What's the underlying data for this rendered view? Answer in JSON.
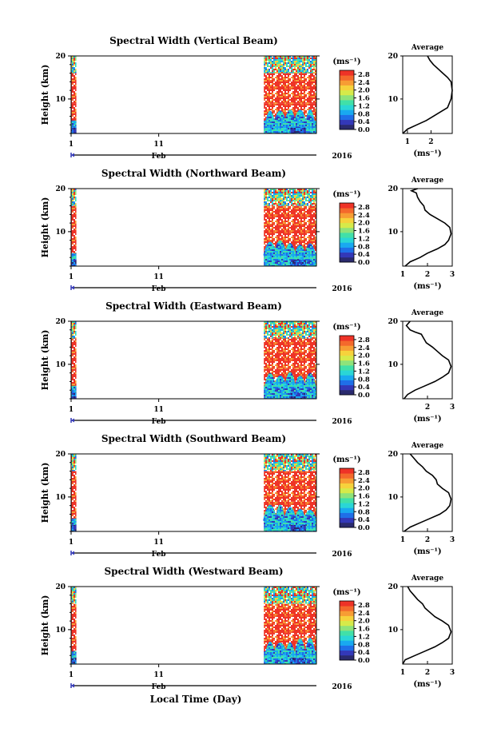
{
  "colors": {
    "scale": [
      "#2a2a6e",
      "#3338b8",
      "#1f6fe8",
      "#19a9f0",
      "#2ad6d6",
      "#41e0a8",
      "#8ee37a",
      "#d6ea4a",
      "#f6d23c",
      "#f79d34",
      "#f4692c",
      "#ee3327"
    ]
  },
  "x_axis": {
    "ticks": [
      "1",
      "11"
    ],
    "month": "Feb",
    "year": "2016",
    "label": "Local Time (Day)"
  },
  "chart_data": [
    {
      "type": "heatmap",
      "title": "Spectral Width (Vertical Beam)",
      "ylabel": "Height (km)",
      "ylim": [
        2,
        20
      ],
      "yticks": [
        "10",
        "20"
      ],
      "xlim": [
        1,
        29
      ],
      "data_spans": [
        [
          1,
          1.6
        ],
        [
          23,
          29
        ]
      ],
      "colorbar": {
        "unit": "(ms⁻¹)",
        "ticks": [
          "0.0",
          "0.4",
          "0.8",
          "1.2",
          "1.6",
          "2.0",
          "2.4",
          "2.8"
        ],
        "range": [
          0,
          3.0
        ]
      },
      "average": {
        "title": "Average",
        "unit": "(ms⁻¹)",
        "xticks": [
          "1",
          "2"
        ],
        "xlim": [
          0.8,
          2.9
        ],
        "profile": [
          [
            0.8,
            2
          ],
          [
            1.0,
            3
          ],
          [
            1.4,
            4
          ],
          [
            1.8,
            5
          ],
          [
            2.1,
            6
          ],
          [
            2.4,
            7
          ],
          [
            2.7,
            8
          ],
          [
            2.85,
            10
          ],
          [
            2.9,
            12
          ],
          [
            2.85,
            14
          ],
          [
            2.7,
            15
          ],
          [
            2.5,
            16
          ],
          [
            2.3,
            17
          ],
          [
            2.1,
            18
          ],
          [
            1.95,
            19
          ],
          [
            1.85,
            20
          ]
        ]
      }
    },
    {
      "type": "heatmap",
      "title": "Spectral Width (Northward Beam)",
      "ylabel": "Height (km)",
      "ylim": [
        2,
        20
      ],
      "yticks": [
        "10",
        "20"
      ],
      "xlim": [
        1,
        29
      ],
      "data_spans": [
        [
          1,
          1.6
        ],
        [
          23,
          29
        ]
      ],
      "colorbar": {
        "unit": "(ms⁻¹)",
        "ticks": [
          "0.0",
          "0.4",
          "0.8",
          "1.2",
          "1.6",
          "2.0",
          "2.4",
          "2.8"
        ],
        "range": [
          0,
          3.0
        ]
      },
      "average": {
        "title": "Average",
        "unit": "(ms⁻¹)",
        "xticks": [
          "1",
          "2",
          "3"
        ],
        "xlim": [
          1,
          3
        ],
        "profile": [
          [
            1.1,
            2
          ],
          [
            1.3,
            3
          ],
          [
            1.7,
            4
          ],
          [
            2.0,
            5
          ],
          [
            2.4,
            6
          ],
          [
            2.7,
            7
          ],
          [
            2.85,
            8
          ],
          [
            2.95,
            9.5
          ],
          [
            2.9,
            11
          ],
          [
            2.7,
            12
          ],
          [
            2.4,
            13
          ],
          [
            2.1,
            14
          ],
          [
            1.9,
            15
          ],
          [
            1.85,
            16
          ],
          [
            1.7,
            17
          ],
          [
            1.6,
            18
          ],
          [
            1.55,
            19
          ],
          [
            1.35,
            19.5
          ],
          [
            1.6,
            20
          ]
        ]
      }
    },
    {
      "type": "heatmap",
      "title": "Spectral Width (Eastward Beam)",
      "ylabel": "Height (km)",
      "ylim": [
        2,
        20
      ],
      "yticks": [
        "10",
        "20"
      ],
      "xlim": [
        1,
        29
      ],
      "data_spans": [
        [
          1,
          1.6
        ],
        [
          23,
          29
        ]
      ],
      "colorbar": {
        "unit": "(ms⁻¹)",
        "ticks": [
          "0.0",
          "0.4",
          "0.8",
          "1.2",
          "1.6",
          "2.0",
          "2.4",
          "2.8"
        ],
        "range": [
          0,
          3.0
        ]
      },
      "average": {
        "title": "Average",
        "unit": "(ms⁻¹)",
        "xticks": [
          "2",
          "3"
        ],
        "xlim": [
          1,
          3
        ],
        "profile": [
          [
            1.05,
            2
          ],
          [
            1.2,
            3
          ],
          [
            1.5,
            4
          ],
          [
            1.9,
            5
          ],
          [
            2.3,
            6
          ],
          [
            2.6,
            7
          ],
          [
            2.85,
            8
          ],
          [
            2.95,
            9.5
          ],
          [
            2.85,
            11
          ],
          [
            2.6,
            12
          ],
          [
            2.4,
            13
          ],
          [
            2.2,
            14
          ],
          [
            1.95,
            15
          ],
          [
            1.85,
            16
          ],
          [
            1.75,
            17
          ],
          [
            1.5,
            17.5
          ],
          [
            1.3,
            18
          ],
          [
            1.15,
            19
          ],
          [
            1.3,
            20
          ]
        ]
      }
    },
    {
      "type": "heatmap",
      "title": "Spectral Width (Southward Beam)",
      "ylabel": "Height (km)",
      "ylim": [
        2,
        20
      ],
      "yticks": [
        "10",
        "20"
      ],
      "xlim": [
        1,
        29
      ],
      "data_spans": [
        [
          1,
          1.6
        ],
        [
          23,
          29
        ]
      ],
      "colorbar": {
        "unit": "(ms⁻¹)",
        "ticks": [
          "0.0",
          "0.4",
          "0.8",
          "1.2",
          "1.6",
          "2.0",
          "2.4",
          "2.8"
        ],
        "range": [
          0,
          3.0
        ]
      },
      "average": {
        "title": "Average",
        "unit": "(ms⁻¹)",
        "xticks": [
          "1",
          "2",
          "3"
        ],
        "xlim": [
          1,
          3
        ],
        "profile": [
          [
            1.05,
            2
          ],
          [
            1.3,
            3
          ],
          [
            1.7,
            4
          ],
          [
            2.1,
            5
          ],
          [
            2.5,
            6
          ],
          [
            2.75,
            7
          ],
          [
            2.9,
            8
          ],
          [
            2.95,
            9.5
          ],
          [
            2.85,
            11
          ],
          [
            2.6,
            12
          ],
          [
            2.4,
            13
          ],
          [
            2.35,
            14
          ],
          [
            2.2,
            15
          ],
          [
            1.95,
            16
          ],
          [
            1.8,
            17
          ],
          [
            1.6,
            18
          ],
          [
            1.45,
            19
          ],
          [
            1.3,
            20
          ]
        ]
      }
    },
    {
      "type": "heatmap",
      "title": "Spectral Width (Westward Beam)",
      "ylabel": "Height (km)",
      "ylim": [
        2,
        20
      ],
      "yticks": [
        "10",
        "20"
      ],
      "xlim": [
        1,
        29
      ],
      "data_spans": [
        [
          1,
          1.6
        ],
        [
          23,
          29
        ]
      ],
      "colorbar": {
        "unit": "(ms⁻¹)",
        "ticks": [
          "0.0",
          "0.4",
          "0.8",
          "1.2",
          "1.6",
          "2.0",
          "2.4",
          "2.8"
        ],
        "range": [
          0,
          3.0
        ]
      },
      "average": {
        "title": "Average",
        "unit": "(ms⁻¹)",
        "xticks": [
          "1",
          "2",
          "3"
        ],
        "xlim": [
          1,
          3
        ],
        "profile": [
          [
            1.0,
            2
          ],
          [
            1.1,
            3
          ],
          [
            1.5,
            4
          ],
          [
            1.9,
            5
          ],
          [
            2.3,
            6
          ],
          [
            2.6,
            7
          ],
          [
            2.85,
            8
          ],
          [
            2.95,
            9.5
          ],
          [
            2.85,
            11
          ],
          [
            2.6,
            12
          ],
          [
            2.3,
            13
          ],
          [
            2.1,
            14
          ],
          [
            1.9,
            15
          ],
          [
            1.8,
            16
          ],
          [
            1.6,
            17
          ],
          [
            1.45,
            18
          ],
          [
            1.3,
            19
          ],
          [
            1.2,
            20
          ]
        ]
      }
    }
  ]
}
